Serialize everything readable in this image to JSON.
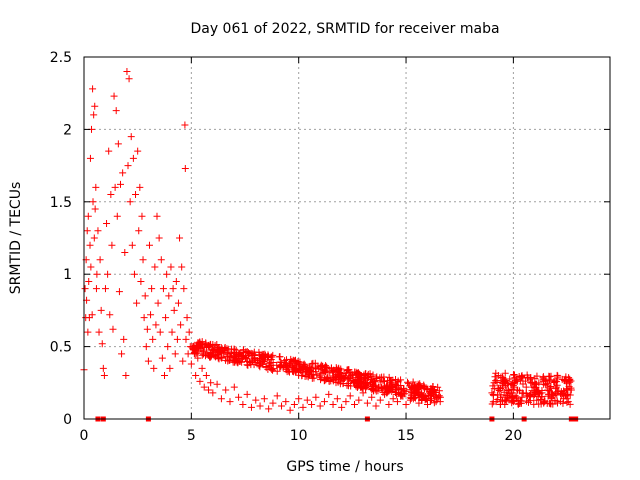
{
  "chart_data": {
    "type": "scatter",
    "title": "Day 061 of 2022, SRMTID for receiver maba",
    "xlabel": "GPS time / hours",
    "ylabel": "SRMTID / TECUs",
    "xlim": [
      0,
      24.5
    ],
    "ylim": [
      0,
      2.5
    ],
    "x_ticks": [
      0,
      5,
      10,
      15,
      20
    ],
    "x_tick_labels": [
      "0",
      "5",
      "10",
      "15",
      "20"
    ],
    "y_ticks": [
      0,
      0.5,
      1,
      1.5,
      2,
      2.5
    ],
    "y_tick_labels": [
      "0",
      "0.5",
      "1",
      "1.5",
      "2",
      "2.5"
    ],
    "grid": true,
    "marker": "+",
    "color": "#ff0000",
    "series": [
      {
        "name": "SRMTID",
        "points": [
          [
            0.0,
            0.34
          ],
          [
            0.05,
            0.9
          ],
          [
            0.08,
            0.7
          ],
          [
            0.1,
            1.1
          ],
          [
            0.12,
            0.82
          ],
          [
            0.15,
            1.3
          ],
          [
            0.18,
            0.6
          ],
          [
            0.2,
            1.4
          ],
          [
            0.22,
            0.95
          ],
          [
            0.25,
            0.7
          ],
          [
            0.28,
            1.2
          ],
          [
            0.3,
            1.8
          ],
          [
            0.32,
            1.05
          ],
          [
            0.35,
            2.0
          ],
          [
            0.38,
            0.72
          ],
          [
            0.4,
            2.28
          ],
          [
            0.42,
            1.5
          ],
          [
            0.45,
            2.1
          ],
          [
            0.48,
            1.25
          ],
          [
            0.5,
            2.16
          ],
          [
            0.52,
            1.45
          ],
          [
            0.55,
            1.6
          ],
          [
            0.58,
            0.9
          ],
          [
            0.6,
            1.0
          ],
          [
            0.65,
            1.3
          ],
          [
            0.7,
            0.6
          ],
          [
            0.75,
            1.1
          ],
          [
            0.8,
            0.75
          ],
          [
            0.85,
            0.52
          ],
          [
            0.9,
            0.35
          ],
          [
            0.95,
            0.3
          ],
          [
            1.0,
            0.9
          ],
          [
            1.05,
            1.35
          ],
          [
            1.1,
            1.0
          ],
          [
            1.15,
            1.85
          ],
          [
            1.2,
            0.72
          ],
          [
            1.25,
            1.55
          ],
          [
            1.3,
            1.2
          ],
          [
            1.35,
            0.62
          ],
          [
            1.4,
            2.23
          ],
          [
            1.45,
            1.6
          ],
          [
            1.5,
            2.13
          ],
          [
            1.55,
            1.4
          ],
          [
            1.6,
            1.9
          ],
          [
            1.65,
            0.88
          ],
          [
            1.7,
            1.62
          ],
          [
            1.75,
            0.45
          ],
          [
            1.8,
            1.7
          ],
          [
            1.85,
            0.55
          ],
          [
            1.9,
            1.15
          ],
          [
            1.95,
            0.3
          ],
          [
            2.0,
            2.4
          ],
          [
            2.05,
            1.75
          ],
          [
            2.1,
            2.35
          ],
          [
            2.15,
            1.5
          ],
          [
            2.2,
            1.95
          ],
          [
            2.25,
            1.2
          ],
          [
            2.3,
            1.8
          ],
          [
            2.35,
            1.0
          ],
          [
            2.4,
            1.55
          ],
          [
            2.45,
            0.8
          ],
          [
            2.5,
            1.85
          ],
          [
            2.55,
            1.3
          ],
          [
            2.6,
            1.6
          ],
          [
            2.65,
            0.95
          ],
          [
            2.7,
            1.4
          ],
          [
            2.75,
            1.1
          ],
          [
            2.8,
            0.7
          ],
          [
            2.85,
            0.85
          ],
          [
            2.9,
            0.5
          ],
          [
            2.95,
            0.62
          ],
          [
            3.0,
            0.4
          ],
          [
            3.05,
            1.2
          ],
          [
            3.1,
            0.72
          ],
          [
            3.15,
            0.9
          ],
          [
            3.2,
            0.55
          ],
          [
            3.25,
            0.35
          ],
          [
            3.3,
            1.05
          ],
          [
            3.35,
            0.65
          ],
          [
            3.4,
            1.4
          ],
          [
            3.45,
            0.8
          ],
          [
            3.5,
            1.25
          ],
          [
            3.55,
            0.6
          ],
          [
            3.6,
            1.1
          ],
          [
            3.65,
            0.42
          ],
          [
            3.7,
            0.9
          ],
          [
            3.75,
            0.3
          ],
          [
            3.8,
            0.7
          ],
          [
            3.85,
            1.0
          ],
          [
            3.9,
            0.5
          ],
          [
            3.95,
            0.85
          ],
          [
            4.0,
            0.35
          ],
          [
            4.05,
            1.05
          ],
          [
            4.1,
            0.6
          ],
          [
            4.15,
            0.9
          ],
          [
            4.2,
            0.75
          ],
          [
            4.25,
            0.45
          ],
          [
            4.3,
            0.95
          ],
          [
            4.35,
            0.55
          ],
          [
            4.4,
            0.8
          ],
          [
            4.45,
            1.25
          ],
          [
            4.5,
            0.65
          ],
          [
            4.55,
            1.05
          ],
          [
            4.6,
            0.4
          ],
          [
            4.65,
            0.9
          ],
          [
            4.7,
            2.03
          ],
          [
            4.72,
            1.73
          ],
          [
            4.75,
            0.55
          ],
          [
            4.8,
            0.7
          ],
          [
            4.85,
            0.45
          ],
          [
            4.9,
            0.6
          ],
          [
            4.95,
            0.5
          ],
          [
            5.0,
            0.38
          ],
          [
            5.1,
            0.48
          ],
          [
            5.2,
            0.3
          ],
          [
            5.3,
            0.42
          ],
          [
            5.4,
            0.26
          ],
          [
            5.5,
            0.35
          ],
          [
            5.6,
            0.22
          ],
          [
            5.7,
            0.3
          ],
          [
            5.8,
            0.2
          ],
          [
            5.9,
            0.25
          ],
          [
            6.0,
            0.18
          ],
          [
            6.2,
            0.24
          ],
          [
            6.4,
            0.14
          ],
          [
            6.6,
            0.2
          ],
          [
            6.8,
            0.12
          ],
          [
            7.0,
            0.22
          ],
          [
            7.2,
            0.15
          ],
          [
            7.4,
            0.1
          ],
          [
            7.6,
            0.17
          ],
          [
            7.8,
            0.08
          ],
          [
            8.0,
            0.13
          ],
          [
            8.2,
            0.09
          ],
          [
            8.4,
            0.14
          ],
          [
            8.6,
            0.07
          ],
          [
            8.8,
            0.11
          ],
          [
            9.0,
            0.16
          ],
          [
            9.2,
            0.09
          ],
          [
            9.4,
            0.12
          ],
          [
            9.6,
            0.06
          ],
          [
            9.8,
            0.1
          ],
          [
            10.0,
            0.14
          ],
          [
            10.2,
            0.08
          ],
          [
            10.4,
            0.13
          ],
          [
            10.6,
            0.1
          ],
          [
            10.8,
            0.15
          ],
          [
            11.0,
            0.09
          ],
          [
            11.2,
            0.12
          ],
          [
            11.4,
            0.17
          ],
          [
            11.6,
            0.1
          ],
          [
            11.8,
            0.14
          ],
          [
            12.0,
            0.08
          ],
          [
            12.2,
            0.12
          ],
          [
            12.4,
            0.16
          ],
          [
            12.6,
            0.1
          ],
          [
            12.8,
            0.13
          ],
          [
            13.0,
            0.18
          ],
          [
            13.2,
            0.11
          ],
          [
            13.4,
            0.15
          ],
          [
            13.6,
            0.09
          ],
          [
            13.8,
            0.13
          ],
          [
            14.0,
            0.17
          ],
          [
            14.2,
            0.1
          ],
          [
            14.4,
            0.14
          ],
          [
            14.6,
            0.12
          ],
          [
            14.8,
            0.16
          ],
          [
            15.0,
            0.1
          ],
          [
            15.2,
            0.13
          ],
          [
            15.4,
            0.18
          ],
          [
            15.6,
            0.11
          ],
          [
            15.8,
            0.15
          ],
          [
            16.0,
            0.1
          ],
          [
            16.2,
            0.2
          ],
          [
            16.4,
            0.12
          ],
          [
            16.6,
            0.15
          ],
          [
            19.0,
            0.18
          ],
          [
            19.1,
            0.25
          ],
          [
            19.2,
            0.12
          ],
          [
            19.3,
            0.3
          ],
          [
            19.4,
            0.15
          ],
          [
            19.5,
            0.22
          ],
          [
            19.6,
            0.1
          ],
          [
            19.7,
            0.2
          ],
          [
            19.8,
            0.14
          ],
          [
            19.9,
            0.18
          ],
          [
            20.0,
            0.12
          ],
          [
            20.2,
            0.2
          ],
          [
            20.4,
            0.15
          ],
          [
            20.6,
            0.22
          ],
          [
            20.8,
            0.17
          ],
          [
            21.0,
            0.24
          ],
          [
            21.2,
            0.18
          ],
          [
            21.4,
            0.26
          ],
          [
            21.6,
            0.2
          ],
          [
            21.8,
            0.15
          ],
          [
            22.0,
            0.22
          ],
          [
            22.2,
            0.12
          ],
          [
            22.4,
            0.18
          ],
          [
            22.5,
            0.14
          ],
          [
            22.6,
            0.27
          ],
          [
            22.7,
            0.2
          ]
        ],
        "bands": [
          {
            "x": [
              5.0,
              16.6
            ],
            "y_low": [
              0.45,
              0.1
            ],
            "y_high": [
              0.55,
              0.22
            ],
            "density": "heavy"
          },
          {
            "x": [
              19.0,
              22.7
            ],
            "y_low": [
              0.1,
              0.1
            ],
            "y_high": [
              0.32,
              0.3
            ],
            "density": "heavy"
          }
        ],
        "zero_points": [
          0.65,
          0.9,
          3.0,
          13.2,
          19.0,
          20.5,
          22.7,
          22.9
        ]
      }
    ]
  }
}
